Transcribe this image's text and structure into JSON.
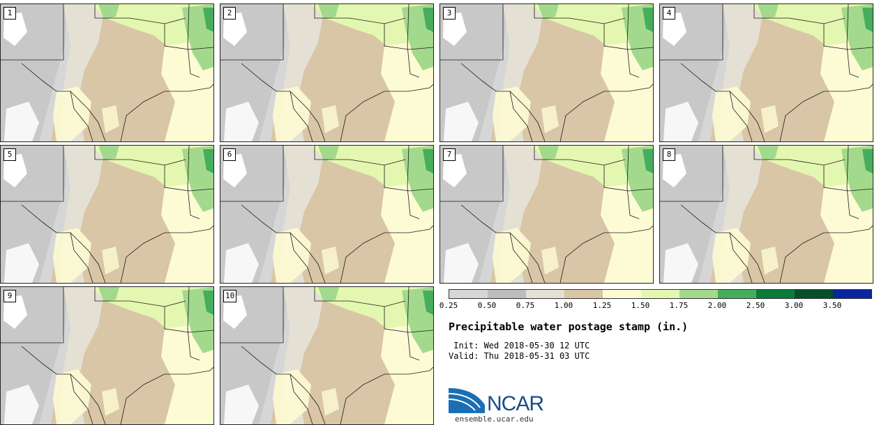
{
  "panels": [
    {
      "label": "1"
    },
    {
      "label": "2"
    },
    {
      "label": "3"
    },
    {
      "label": "4"
    },
    {
      "label": "5"
    },
    {
      "label": "6"
    },
    {
      "label": "7"
    },
    {
      "label": "8"
    },
    {
      "label": "9"
    },
    {
      "label": "10"
    }
  ],
  "colorbar": {
    "ticks": [
      "0.25",
      "0.50",
      "0.75",
      "1.00",
      "1.25",
      "1.50",
      "1.75",
      "2.00",
      "2.50",
      "3.00",
      "3.50"
    ],
    "colors": [
      "#d6d6d6",
      "#bdbdbd",
      "#e4e0d4",
      "#d9c6a7",
      "#fdfbd4",
      "#e4f7b0",
      "#a3d98c",
      "#46ad5c",
      "#0b7a3a",
      "#045028",
      "#0a25a0"
    ]
  },
  "title": "Precipitable water postage stamp (in.)",
  "init": " Init: Wed 2018-05-30 12 UTC",
  "valid": "Valid: Thu 2018-05-31 03 UTC",
  "logo": {
    "text": "NCAR"
  },
  "url": "ensemble.ucar.edu",
  "map_colors": {
    "light_gray": "#d6d6d6",
    "mid_gray": "#bdbdbd",
    "pale_tan": "#e4e0d4",
    "tan": "#d9c6a7",
    "cream": "#fdfbd4",
    "light_green": "#e4f7b0",
    "green": "#a3d98c",
    "dark_green": "#46ad5c"
  }
}
